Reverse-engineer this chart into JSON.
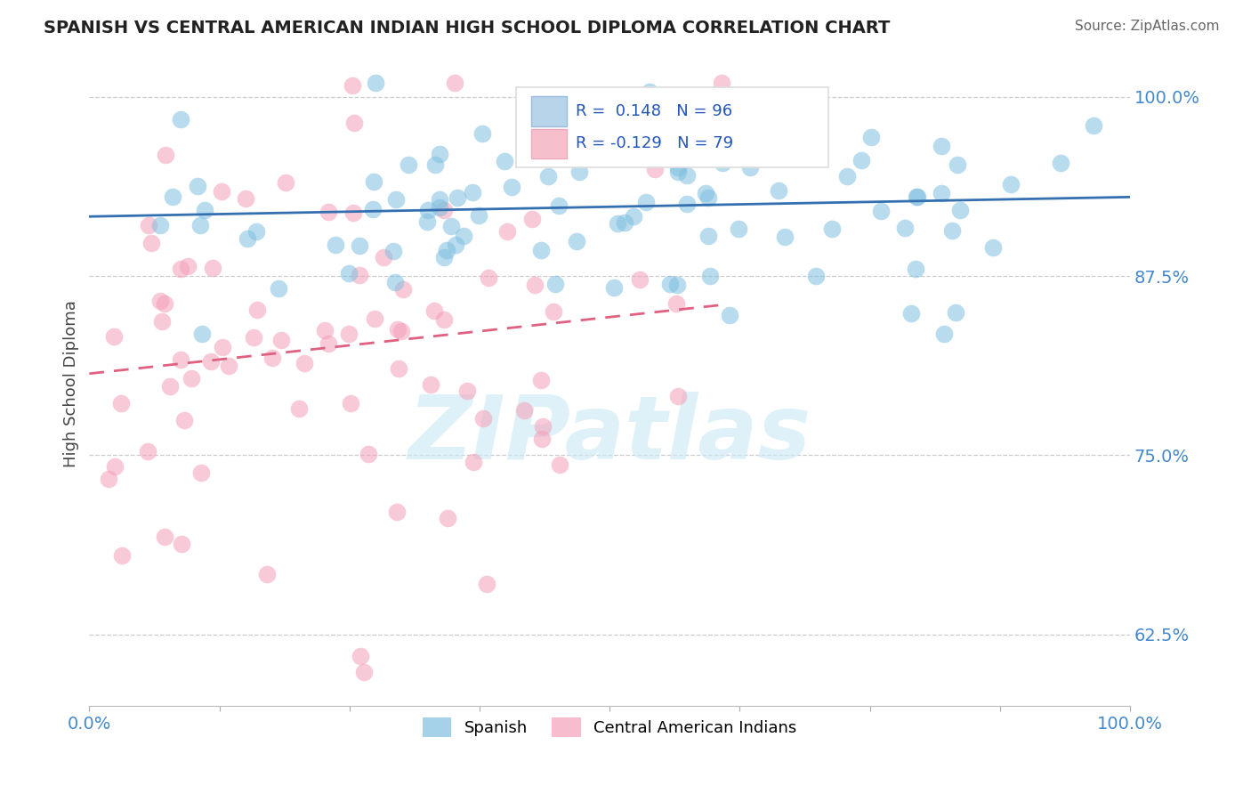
{
  "title": "SPANISH VS CENTRAL AMERICAN INDIAN HIGH SCHOOL DIPLOMA CORRELATION CHART",
  "source": "Source: ZipAtlas.com",
  "ylabel": "High School Diploma",
  "watermark": "ZIPatlas",
  "xlim": [
    0.0,
    1.0
  ],
  "ylim": [
    0.575,
    1.025
  ],
  "ytick_vals": [
    0.625,
    0.75,
    0.875,
    1.0
  ],
  "ytick_labels": [
    "62.5%",
    "75.0%",
    "87.5%",
    "100.0%"
  ],
  "xtick_labels": [
    "0.0%",
    "100.0%"
  ],
  "legend_labels": [
    "Spanish",
    "Central American Indians"
  ],
  "R_spanish": 0.148,
  "N_spanish": 96,
  "R_central": -0.129,
  "N_central": 79,
  "blue_color": "#7fbfdf",
  "pink_color": "#f4a0b8",
  "blue_line_color": "#3470b0",
  "pink_line_color": "#e06080",
  "grid_color": "#cccccc",
  "background_color": "#ffffff",
  "legend_box_blue": "#b8d4ea",
  "legend_box_pink": "#f5bfcc",
  "title_color": "#222222",
  "source_color": "#666666",
  "tick_color": "#4488cc",
  "ylabel_color": "#444444"
}
